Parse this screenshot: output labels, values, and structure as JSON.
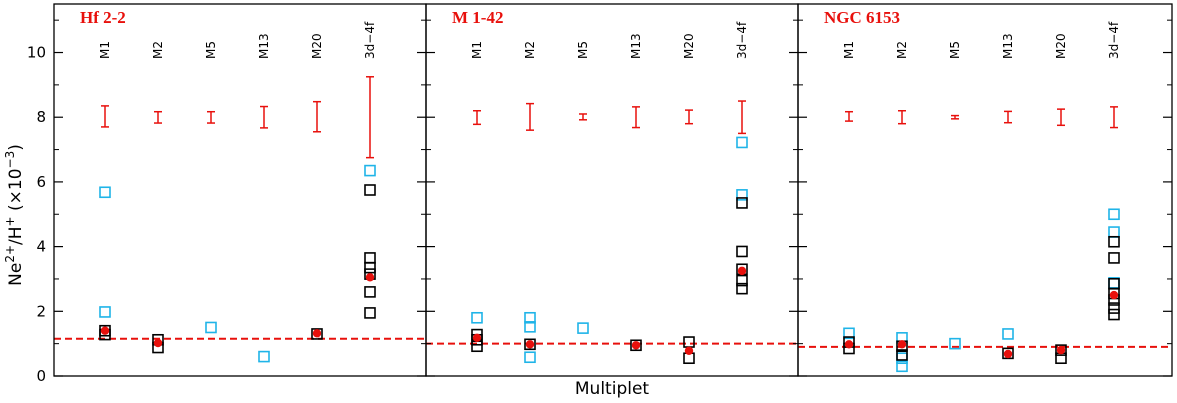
{
  "chart_data": {
    "type": "scatter",
    "ylabel": "Ne$^{2+}$/H$^+$ (×10$^{-3}$)",
    "ylabel_parts": {
      "base": "Ne",
      "sup1": "2+",
      "mid": "/H",
      "sup2": "+",
      "unit_open": " (×10",
      "sup3": "−3",
      "unit_close": ")"
    },
    "xlabel": "Multiplet",
    "ylim": [
      0,
      11.5
    ],
    "yticks": [
      "0",
      "2",
      "4",
      "6",
      "8",
      "10"
    ],
    "multiplets": [
      "M1",
      "M2",
      "M5",
      "M13",
      "M20",
      "3d−4f"
    ],
    "colors": {
      "error_bar": "#e8100c",
      "mean": "#e8100c",
      "dashed": "#e8100c",
      "open_a": "#000000",
      "open_b": "#1fb4e8"
    },
    "panels": [
      {
        "title": "Hf 2-2",
        "dashed_level": 1.15,
        "error_bars": [
          [
            7.7,
            8.35
          ],
          [
            7.82,
            8.17
          ],
          [
            7.82,
            8.17
          ],
          [
            7.67,
            8.33
          ],
          [
            7.55,
            8.48
          ],
          [
            6.75,
            9.25
          ]
        ],
        "black_squares": [
          [
            1.28,
            1.4
          ],
          [
            0.88,
            1.12
          ],
          [],
          [],
          [
            1.3
          ],
          [
            5.75,
            3.65,
            3.35,
            3.15,
            2.6,
            1.95
          ]
        ],
        "blue_squares": [
          [
            5.68,
            1.98
          ],
          [],
          [
            1.5
          ],
          [
            0.6
          ],
          [],
          [
            6.35
          ]
        ],
        "means": [
          1.4,
          1.02,
          null,
          null,
          1.32,
          3.05
        ]
      },
      {
        "title": "M 1-42",
        "dashed_level": 1.0,
        "error_bars": [
          [
            7.78,
            8.2
          ],
          [
            7.6,
            8.42
          ],
          [
            7.92,
            8.1
          ],
          [
            7.68,
            8.32
          ],
          [
            7.8,
            8.22
          ],
          [
            7.5,
            8.5
          ]
        ],
        "black_squares": [
          [
            1.28,
            1.12,
            0.92
          ],
          [
            0.98
          ],
          [],
          [
            0.95
          ],
          [
            1.05,
            0.55
          ],
          [
            5.35,
            3.85,
            3.3,
            2.95,
            2.7
          ]
        ],
        "blue_squares": [
          [
            1.8
          ],
          [
            1.8,
            1.52,
            0.58
          ],
          [
            1.48
          ],
          [],
          [],
          [
            7.22,
            5.6
          ]
        ],
        "means": [
          1.18,
          0.98,
          null,
          0.95,
          0.78,
          3.25
        ]
      },
      {
        "title": "NGC 6153",
        "dashed_level": 0.9,
        "error_bars": [
          [
            7.88,
            8.17
          ],
          [
            7.8,
            8.2
          ],
          [
            7.95,
            8.05
          ],
          [
            7.83,
            8.18
          ],
          [
            7.75,
            8.25
          ],
          [
            7.68,
            8.32
          ]
        ],
        "black_squares": [
          [
            1.05,
            0.85
          ],
          [
            0.92,
            0.65
          ],
          [],
          [
            0.7
          ],
          [
            0.8,
            0.55
          ],
          [
            4.15,
            3.65,
            2.85,
            2.55,
            2.35,
            2.1,
            1.9
          ]
        ],
        "blue_squares": [
          [
            1.32
          ],
          [
            1.18,
            0.55,
            0.3
          ],
          [
            1.0
          ],
          [
            1.3
          ],
          [],
          [
            5.0,
            4.45,
            2.88
          ]
        ],
        "means": [
          0.98,
          0.98,
          null,
          0.68,
          0.8,
          2.5
        ]
      }
    ]
  }
}
